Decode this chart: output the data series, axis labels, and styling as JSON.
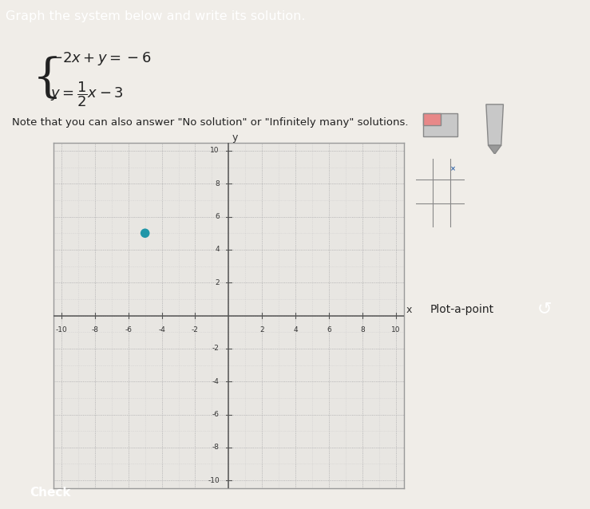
{
  "xlim": [
    -10.5,
    10.5
  ],
  "ylim": [
    -10.5,
    10.5
  ],
  "dot_x": -5,
  "dot_y": 5,
  "dot_color": "#2096a8",
  "dot_size": 70,
  "grid_minor_color": "#c5c5c5",
  "axis_color": "#555555",
  "plot_bg": "#e8e6e2",
  "border_color": "#999999",
  "body_bg": "#f0ede8",
  "panel_bg": "#f5f3f0",
  "check_button_color": "#3d8c5c",
  "teal_button": "#1a7a96",
  "header_bg": "#5aab78",
  "header_text": "#ffffff",
  "text_color": "#222222",
  "tick_positions": [
    -10,
    -8,
    -6,
    -4,
    -2,
    2,
    4,
    6,
    8,
    10
  ]
}
